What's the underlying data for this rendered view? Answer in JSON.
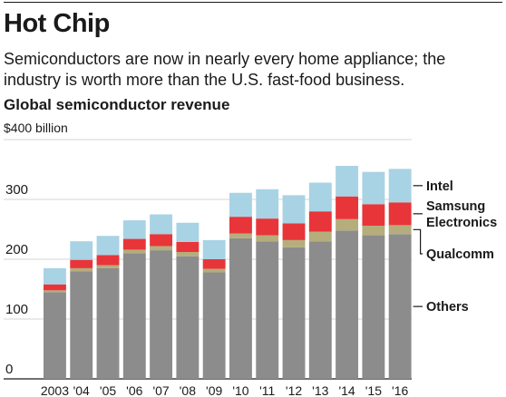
{
  "header": {
    "title": "Hot Chip",
    "subtitle": "Semiconductors are now in nearly every home appliance; the industry is worth more than the U.S. fast-food business."
  },
  "chart_data": {
    "type": "bar",
    "stacked": true,
    "title": "Global semiconductor revenue",
    "unit_label": "$400 billion",
    "ylim": [
      0,
      400
    ],
    "yticks": [
      0,
      100,
      200,
      300
    ],
    "grid": true,
    "legend_placement": "right",
    "categories": [
      "2003",
      "'04",
      "'05",
      "'06",
      "'07",
      "'08",
      "'09",
      "'10",
      "'11",
      "'12",
      "'13",
      "'14",
      "'15",
      "'16"
    ],
    "series": [
      {
        "name": "Others",
        "color": "#8c8c8c",
        "values": [
          145,
          180,
          185,
          210,
          215,
          205,
          178,
          235,
          230,
          220,
          230,
          248,
          240,
          242
        ]
      },
      {
        "name": "Qualcomm",
        "color": "#b5ad7c",
        "values": [
          3,
          5,
          5,
          6,
          7,
          7,
          6,
          8,
          10,
          12,
          16,
          19,
          16,
          15
        ]
      },
      {
        "name": "Samsung Electronics",
        "color": "#e8353a",
        "values": [
          10,
          14,
          17,
          18,
          20,
          17,
          16,
          28,
          28,
          28,
          34,
          38,
          36,
          38
        ]
      },
      {
        "name": "Intel",
        "color": "#a8d3e4",
        "values": [
          27,
          31,
          32,
          31,
          33,
          32,
          32,
          40,
          49,
          47,
          48,
          51,
          54,
          56
        ]
      }
    ],
    "colors": {
      "grid": "#d4d4d4",
      "axis": "#1a1a1a",
      "text": "#1a1a1a"
    }
  }
}
